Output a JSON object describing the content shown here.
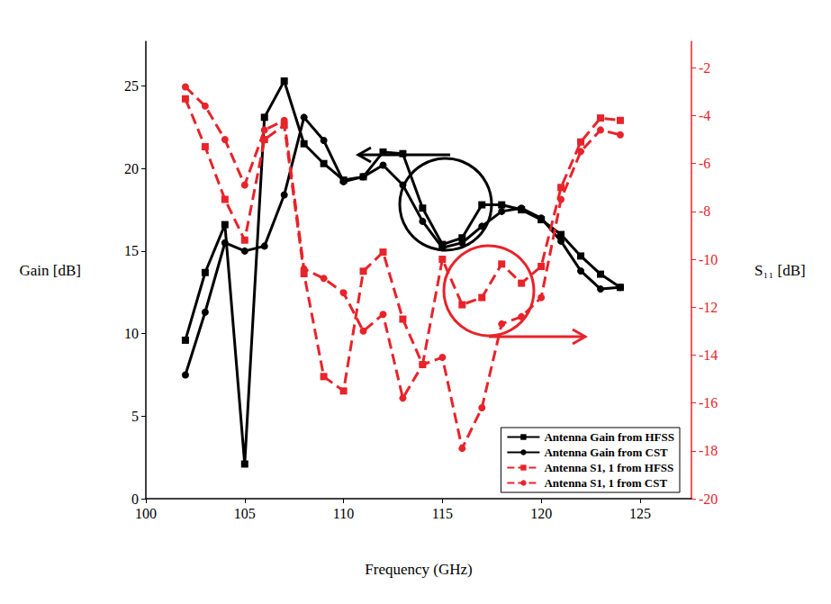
{
  "chart_data": {
    "type": "line",
    "x_label": "Frequency (GHz)",
    "y_label": "Gain [dB]",
    "y2_label": "S₁₁ [dB]",
    "xlim": [
      100,
      127.6
    ],
    "xticks": [
      100,
      105,
      110,
      115,
      120,
      125
    ],
    "ylim": [
      0,
      27.7
    ],
    "yticks": [
      0,
      5,
      10,
      15,
      20,
      25
    ],
    "y2lim": [
      -20,
      -0.9
    ],
    "y2ticks": [
      -20,
      -18,
      -16,
      -14,
      -12,
      -10,
      -8,
      -6,
      -4,
      -2
    ],
    "grid": false,
    "legend": "bottom-right",
    "x": [
      102,
      103,
      104,
      105,
      106,
      107,
      108,
      109,
      110,
      111,
      112,
      113,
      114,
      115,
      116,
      117,
      118,
      119,
      120,
      121,
      122,
      123,
      124
    ],
    "series": [
      {
        "name": "Antenna Gain from HFSS",
        "color": "#000000",
        "marker": "square",
        "line_style": "solid",
        "values": [
          9.6,
          13.7,
          16.6,
          2.1,
          23.1,
          25.3,
          21.5,
          20.3,
          19.3,
          19.5,
          21.0,
          20.9,
          17.6,
          15.4,
          15.8,
          17.8,
          17.8,
          17.5,
          16.9,
          16.0,
          14.7,
          13.6,
          12.8
        ]
      },
      {
        "name": "Antenna Gain from CST",
        "color": "#000000",
        "marker": "circle",
        "line_style": "solid",
        "values": [
          7.5,
          11.3,
          15.5,
          15.0,
          15.3,
          18.4,
          23.1,
          21.7,
          19.2,
          19.5,
          20.2,
          19.0,
          16.8,
          15.2,
          15.5,
          16.5,
          17.4,
          17.6,
          17.0,
          15.6,
          13.8,
          12.7,
          12.8
        ]
      },
      {
        "name": "Antenna S1, 1 from HFSS",
        "color": "#e8232a",
        "marker": "square",
        "line_style": "dashed",
        "axis": "y2",
        "values": [
          -3.3,
          -5.3,
          -7.5,
          -9.2,
          -5.0,
          -4.4,
          -10.6,
          -14.9,
          -15.5,
          -10.5,
          -9.7,
          -12.5,
          -14.4,
          -10.0,
          -11.9,
          -11.6,
          -10.2,
          -11.0,
          -10.3,
          -7.0,
          -5.1,
          -4.1,
          -4.2
        ]
      },
      {
        "name": "Antenna S1, 1 from CST",
        "color": "#e8232a",
        "marker": "circle",
        "line_style": "dashed",
        "axis": "y2",
        "values": [
          -2.8,
          -3.6,
          -5.0,
          -6.9,
          -4.6,
          -4.2,
          -10.4,
          -10.8,
          -11.4,
          -13.0,
          -12.3,
          -15.8,
          -14.4,
          -14.1,
          -17.9,
          -16.2,
          -12.7,
          -12.4,
          -11.6,
          -7.5,
          -5.5,
          -4.6,
          -4.8
        ]
      }
    ]
  }
}
